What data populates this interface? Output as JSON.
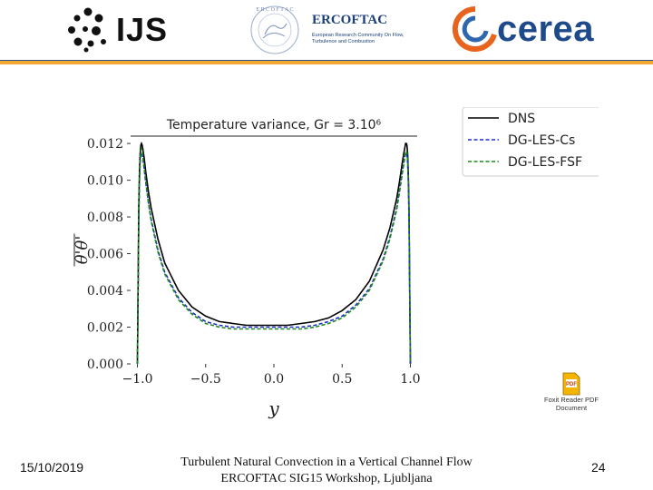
{
  "header": {
    "logos": {
      "ijs": {
        "text": "IJS",
        "icon": "ijs-dots-logo"
      },
      "ercoftac": {
        "name": "ERCOFTAC",
        "subtitle": "European Research Community On Flow, Turbulence and Combustion",
        "seal_text": "ERCOFTAC"
      },
      "cerea": {
        "text": "cerea",
        "icon": "cerea-swirl-logo"
      }
    },
    "divider_colors": {
      "top": "#2e4f8a",
      "bottom": "#f0a830"
    }
  },
  "chart_data": {
    "type": "line",
    "title": "Temperature variance, Gr = 3.10⁶",
    "xlabel": "y",
    "ylabel": "θ'θ'",
    "xlim": [
      -1.05,
      1.05
    ],
    "ylim": [
      0.0,
      0.0124
    ],
    "x_ticks": [
      "−1.0",
      "−0.5",
      "0.0",
      "0.5",
      "1.0"
    ],
    "y_ticks": [
      "0.000",
      "0.002",
      "0.004",
      "0.006",
      "0.008",
      "0.010",
      "0.012"
    ],
    "legend_position": "outside-top-right",
    "grid": false,
    "series": [
      {
        "name": "DNS",
        "color": "#000000",
        "dash": "solid",
        "points": [
          [
            -1.0,
            0.0
          ],
          [
            -0.995,
            0.0045
          ],
          [
            -0.99,
            0.0085
          ],
          [
            -0.985,
            0.0105
          ],
          [
            -0.98,
            0.0114
          ],
          [
            -0.975,
            0.0119
          ],
          [
            -0.97,
            0.012
          ],
          [
            -0.965,
            0.0119
          ],
          [
            -0.96,
            0.0117
          ],
          [
            -0.95,
            0.0112
          ],
          [
            -0.94,
            0.0105
          ],
          [
            -0.92,
            0.0094
          ],
          [
            -0.9,
            0.0085
          ],
          [
            -0.85,
            0.0068
          ],
          [
            -0.8,
            0.0055
          ],
          [
            -0.7,
            0.004
          ],
          [
            -0.6,
            0.0031
          ],
          [
            -0.5,
            0.0026
          ],
          [
            -0.4,
            0.0023
          ],
          [
            -0.3,
            0.0022
          ],
          [
            -0.2,
            0.0021
          ],
          [
            -0.1,
            0.0021
          ],
          [
            0.0,
            0.0021
          ],
          [
            0.1,
            0.0021
          ],
          [
            0.2,
            0.0022
          ],
          [
            0.3,
            0.0023
          ],
          [
            0.4,
            0.0025
          ],
          [
            0.5,
            0.0029
          ],
          [
            0.6,
            0.0035
          ],
          [
            0.7,
            0.0045
          ],
          [
            0.8,
            0.0062
          ],
          [
            0.85,
            0.0074
          ],
          [
            0.9,
            0.009
          ],
          [
            0.92,
            0.0099
          ],
          [
            0.94,
            0.0109
          ],
          [
            0.95,
            0.0114
          ],
          [
            0.96,
            0.0118
          ],
          [
            0.965,
            0.012
          ],
          [
            0.97,
            0.012
          ],
          [
            0.975,
            0.0119
          ],
          [
            0.98,
            0.0114
          ],
          [
            0.985,
            0.0104
          ],
          [
            0.99,
            0.0084
          ],
          [
            0.995,
            0.0044
          ],
          [
            1.0,
            0.0
          ]
        ]
      },
      {
        "name": "DG-LES-Cs",
        "color": "#1f2bd0",
        "dash": "dashed",
        "points": [
          [
            -1.0,
            0.0
          ],
          [
            -0.995,
            0.004
          ],
          [
            -0.99,
            0.0078
          ],
          [
            -0.985,
            0.0099
          ],
          [
            -0.98,
            0.0109
          ],
          [
            -0.975,
            0.0114
          ],
          [
            -0.97,
            0.0115
          ],
          [
            -0.965,
            0.0114
          ],
          [
            -0.96,
            0.0112
          ],
          [
            -0.95,
            0.0106
          ],
          [
            -0.94,
            0.0099
          ],
          [
            -0.92,
            0.0088
          ],
          [
            -0.9,
            0.0079
          ],
          [
            -0.85,
            0.0062
          ],
          [
            -0.8,
            0.005
          ],
          [
            -0.7,
            0.0036
          ],
          [
            -0.6,
            0.0028
          ],
          [
            -0.5,
            0.0023
          ],
          [
            -0.4,
            0.0021
          ],
          [
            -0.3,
            0.002
          ],
          [
            -0.2,
            0.002
          ],
          [
            -0.1,
            0.002
          ],
          [
            0.0,
            0.002
          ],
          [
            0.1,
            0.002
          ],
          [
            0.2,
            0.002
          ],
          [
            0.3,
            0.0021
          ],
          [
            0.4,
            0.0023
          ],
          [
            0.5,
            0.0026
          ],
          [
            0.6,
            0.0032
          ],
          [
            0.7,
            0.0041
          ],
          [
            0.8,
            0.0057
          ],
          [
            0.85,
            0.0069
          ],
          [
            0.9,
            0.0085
          ],
          [
            0.92,
            0.0094
          ],
          [
            0.94,
            0.0104
          ],
          [
            0.95,
            0.0109
          ],
          [
            0.96,
            0.0113
          ],
          [
            0.965,
            0.0114
          ],
          [
            0.97,
            0.0115
          ],
          [
            0.975,
            0.0114
          ],
          [
            0.98,
            0.0109
          ],
          [
            0.985,
            0.0099
          ],
          [
            0.99,
            0.0078
          ],
          [
            0.995,
            0.004
          ],
          [
            1.0,
            0.0
          ]
        ]
      },
      {
        "name": "DG-LES-FSF",
        "color": "#1a8a1a",
        "dash": "dashed",
        "points": [
          [
            -1.0,
            0.0
          ],
          [
            -0.995,
            0.0041
          ],
          [
            -0.99,
            0.008
          ],
          [
            -0.985,
            0.0101
          ],
          [
            -0.98,
            0.0111
          ],
          [
            -0.975,
            0.0116
          ],
          [
            -0.97,
            0.0117
          ],
          [
            -0.965,
            0.0116
          ],
          [
            -0.96,
            0.0113
          ],
          [
            -0.95,
            0.0107
          ],
          [
            -0.94,
            0.01
          ],
          [
            -0.92,
            0.0088
          ],
          [
            -0.9,
            0.0078
          ],
          [
            -0.85,
            0.0061
          ],
          [
            -0.8,
            0.0049
          ],
          [
            -0.7,
            0.0035
          ],
          [
            -0.6,
            0.0027
          ],
          [
            -0.5,
            0.0022
          ],
          [
            -0.4,
            0.002
          ],
          [
            -0.3,
            0.0019
          ],
          [
            -0.2,
            0.0019
          ],
          [
            -0.1,
            0.0019
          ],
          [
            0.0,
            0.0019
          ],
          [
            0.1,
            0.0019
          ],
          [
            0.2,
            0.0019
          ],
          [
            0.3,
            0.002
          ],
          [
            0.4,
            0.0022
          ],
          [
            0.5,
            0.0025
          ],
          [
            0.6,
            0.0031
          ],
          [
            0.7,
            0.004
          ],
          [
            0.8,
            0.0056
          ],
          [
            0.85,
            0.0068
          ],
          [
            0.9,
            0.0084
          ],
          [
            0.92,
            0.0093
          ],
          [
            0.94,
            0.0103
          ],
          [
            0.95,
            0.0108
          ],
          [
            0.96,
            0.0113
          ],
          [
            0.965,
            0.0115
          ],
          [
            0.97,
            0.0116
          ],
          [
            0.975,
            0.0115
          ],
          [
            0.98,
            0.011
          ],
          [
            0.985,
            0.01
          ],
          [
            0.99,
            0.0079
          ],
          [
            0.995,
            0.0041
          ],
          [
            1.0,
            0.0
          ]
        ]
      }
    ]
  },
  "attachment": {
    "caption_line1": "Foxit Reader PDF",
    "caption_line2": "Document",
    "icon": "pdf-document-icon"
  },
  "footer": {
    "date": "15/10/2019",
    "title_line1": "Turbulent Natural Convection in a Vertical Channel Flow",
    "title_line2": "ERCOFTAC SIG15 Workshop, Ljubljana",
    "page": "24"
  }
}
